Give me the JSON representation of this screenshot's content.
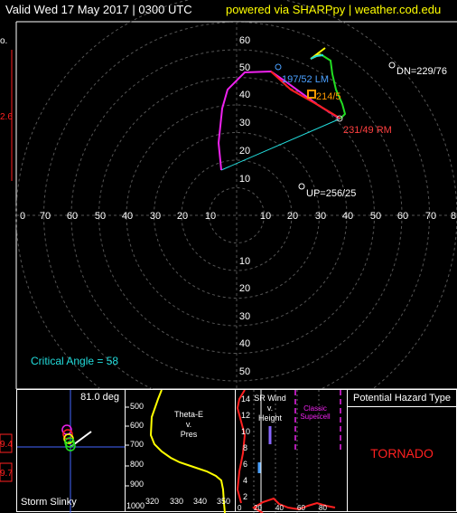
{
  "header": {
    "valid": "Valid  Wed 17 May 2017 | 0300 UTC",
    "powered": "powered via SHARPpy | weather.cod.edu"
  },
  "hodograph": {
    "ring_labels": [
      "10",
      "20",
      "30",
      "40",
      "50",
      "60"
    ],
    "axis_labels_left": [
      "70",
      "60",
      "50",
      "40",
      "30",
      "20",
      "10"
    ],
    "axis_labels_right": [
      "10",
      "20",
      "30",
      "40",
      "50",
      "60",
      "70",
      "8"
    ],
    "axis_zero": "0",
    "lm_label": "197/52 LM",
    "rm_label": "231/49 RM",
    "mean_label": "214/5",
    "dn_label": "DN=229/76",
    "up_label": "UP=256/25",
    "critical_angle": "Critical Angle = 58",
    "left_edge_fragments": [
      "o.",
      "2.6"
    ],
    "colors": {
      "red": "#ff2020",
      "green": "#22dd22",
      "yellow": "#ffff00",
      "magenta": "#ee22ee",
      "cyan": "#22dddd",
      "orange": "#ff9900",
      "ring": "#555555"
    }
  },
  "slinky": {
    "title": "Storm Slinky",
    "angle": "81.0 deg",
    "left_values": [
      "9.4",
      "9.7"
    ]
  },
  "theta": {
    "title_lines": [
      "Theta-E",
      "v.",
      "Pres"
    ],
    "y_ticks": [
      "500",
      "600",
      "700",
      "800",
      "900",
      "1000"
    ],
    "x_ticks": [
      "320",
      "330",
      "340",
      "350"
    ]
  },
  "srwind": {
    "title_lines": [
      "SR Wind",
      "v.",
      "Height"
    ],
    "classic_lines": [
      "Classic",
      "Supercell"
    ],
    "y_ticks": [
      "14",
      "12",
      "10",
      "8",
      "6",
      "4",
      "2"
    ],
    "bottom_ticks": [
      "0",
      "20",
      "40",
      "60",
      "80"
    ]
  },
  "hazard": {
    "title": "Potential Hazard Type",
    "value": "TORNADO"
  }
}
